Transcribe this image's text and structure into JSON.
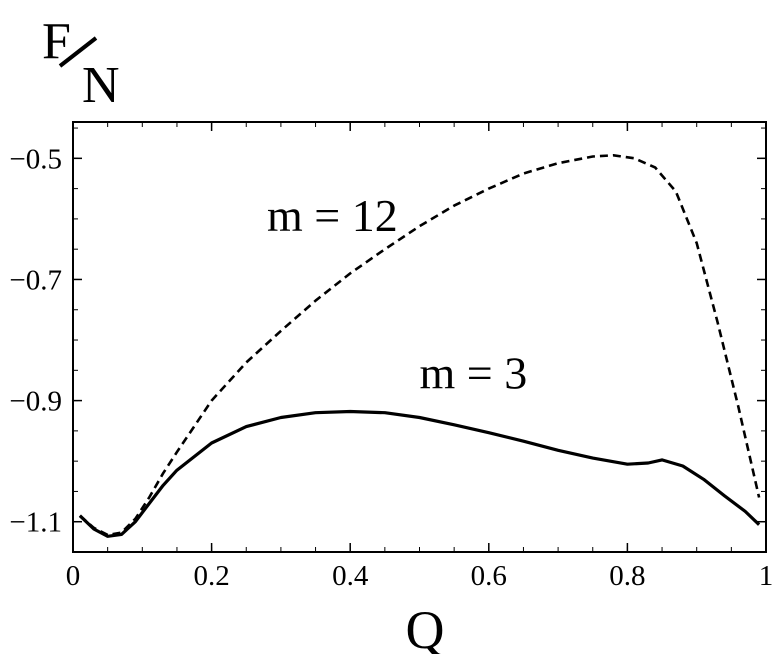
{
  "chart_data": {
    "type": "line",
    "xlabel": "Q",
    "ylabel": {
      "numerator": "F",
      "denominator": "N"
    },
    "xlim": [
      0,
      1
    ],
    "ylim": [
      -1.15,
      -0.44
    ],
    "xticks": [
      0,
      0.2,
      0.4,
      0.6,
      0.8,
      1
    ],
    "xtick_labels": [
      "0",
      "0.2",
      "0.4",
      "0.6",
      "0.8",
      "1"
    ],
    "yticks": [
      -0.5,
      -0.7,
      -0.9,
      -1.1
    ],
    "ytick_labels": [
      "-0.5",
      "-0.7",
      "-0.9",
      "-1.1"
    ],
    "grid": false,
    "series": [
      {
        "name": "m = 12",
        "style": "dashed",
        "color": "#000000",
        "x": [
          0.01,
          0.03,
          0.05,
          0.07,
          0.09,
          0.11,
          0.13,
          0.15,
          0.2,
          0.25,
          0.3,
          0.35,
          0.4,
          0.45,
          0.5,
          0.55,
          0.6,
          0.65,
          0.7,
          0.75,
          0.78,
          0.81,
          0.84,
          0.87,
          0.9,
          0.93,
          0.96,
          0.99
        ],
        "y": [
          -1.09,
          -1.11,
          -1.122,
          -1.118,
          -1.095,
          -1.06,
          -1.02,
          -0.985,
          -0.9,
          -0.837,
          -0.785,
          -0.735,
          -0.69,
          -0.65,
          -0.612,
          -0.578,
          -0.55,
          -0.525,
          -0.508,
          -0.497,
          -0.495,
          -0.5,
          -0.515,
          -0.555,
          -0.64,
          -0.77,
          -0.91,
          -1.06
        ]
      },
      {
        "name": "m = 3",
        "style": "solid",
        "color": "#000000",
        "x": [
          0.01,
          0.03,
          0.05,
          0.07,
          0.09,
          0.11,
          0.13,
          0.15,
          0.2,
          0.25,
          0.3,
          0.35,
          0.4,
          0.45,
          0.5,
          0.55,
          0.6,
          0.65,
          0.7,
          0.75,
          0.8,
          0.83,
          0.85,
          0.88,
          0.91,
          0.94,
          0.97,
          0.99
        ],
        "y": [
          -1.09,
          -1.112,
          -1.124,
          -1.121,
          -1.1,
          -1.07,
          -1.04,
          -1.015,
          -0.97,
          -0.943,
          -0.928,
          -0.92,
          -0.918,
          -0.92,
          -0.928,
          -0.94,
          -0.953,
          -0.967,
          -0.982,
          -0.995,
          -1.005,
          -1.003,
          -0.998,
          -1.008,
          -1.03,
          -1.057,
          -1.083,
          -1.105
        ]
      }
    ],
    "annotations": [
      {
        "text": "m = 12",
        "x": 0.28,
        "y": -0.62
      },
      {
        "text": "m = 3",
        "x": 0.5,
        "y": -0.88
      }
    ]
  }
}
